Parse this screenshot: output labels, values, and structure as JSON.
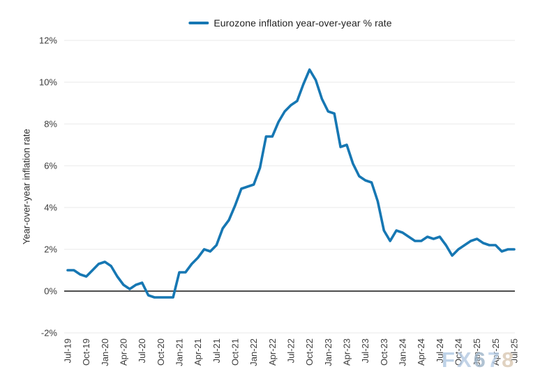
{
  "legend": {
    "label": "Eurozone inflation year-over-year % rate"
  },
  "colors": {
    "line": "#1677b3",
    "grid": "#e8e8e8",
    "zero_axis": "#4d4d4d",
    "tick_text": "#3c3c3c"
  },
  "watermark": {
    "text": "FX678",
    "char_colors": [
      "#aec8e2",
      "#b4c9e2",
      "#9db3c8",
      "#b8cfe8",
      "#d9c8b2"
    ]
  },
  "chart_data": {
    "type": "line",
    "title": "",
    "ylabel": "Year-over-year inflation rate",
    "xlabel": "",
    "legend_entries": [
      "Eurozone inflation year-over-year % rate"
    ],
    "legend_position": "top-center",
    "grid": "horizontal",
    "ylim": [
      -2,
      12
    ],
    "y_ticks": [
      12,
      10,
      8,
      6,
      4,
      2,
      0,
      -2
    ],
    "y_tick_labels": [
      "12%",
      "10%",
      "8%",
      "6%",
      "4%",
      "2%",
      "0%",
      "-2%"
    ],
    "x_tick_every": 3,
    "x_tick_labels": [
      "Jul-19",
      "Oct-19",
      "Jan-20",
      "Apr-20",
      "Jul-20",
      "Oct-20",
      "Jan-21",
      "Apr-21",
      "Jul-21",
      "Oct-21",
      "Jan-22",
      "Apr-22",
      "Jul-22",
      "Oct-22",
      "Jan-23",
      "Apr-23",
      "Jul-23",
      "Oct-23",
      "Jan-24",
      "Apr-24",
      "Jul-24",
      "Oct-24",
      "Jan-25",
      "Apr-25",
      "Jul-25"
    ],
    "x": [
      "Jul-19",
      "Aug-19",
      "Sep-19",
      "Oct-19",
      "Nov-19",
      "Dec-19",
      "Jan-20",
      "Feb-20",
      "Mar-20",
      "Apr-20",
      "May-20",
      "Jun-20",
      "Jul-20",
      "Aug-20",
      "Sep-20",
      "Oct-20",
      "Nov-20",
      "Dec-20",
      "Jan-21",
      "Feb-21",
      "Mar-21",
      "Apr-21",
      "May-21",
      "Jun-21",
      "Jul-21",
      "Aug-21",
      "Sep-21",
      "Oct-21",
      "Nov-21",
      "Dec-21",
      "Jan-22",
      "Feb-22",
      "Mar-22",
      "Apr-22",
      "May-22",
      "Jun-22",
      "Jul-22",
      "Aug-22",
      "Sep-22",
      "Oct-22",
      "Nov-22",
      "Dec-22",
      "Jan-23",
      "Feb-23",
      "Mar-23",
      "Apr-23",
      "May-23",
      "Jun-23",
      "Jul-23",
      "Aug-23",
      "Sep-23",
      "Oct-23",
      "Nov-23",
      "Dec-23",
      "Jan-24",
      "Feb-24",
      "Mar-24",
      "Apr-24",
      "May-24",
      "Jun-24",
      "Jul-24",
      "Aug-24",
      "Sep-24",
      "Oct-24",
      "Nov-24",
      "Dec-24",
      "Jan-25",
      "Feb-25",
      "Mar-25",
      "Apr-25",
      "May-25",
      "Jun-25",
      "Jul-25"
    ],
    "values": [
      1.0,
      1.0,
      0.8,
      0.7,
      1.0,
      1.3,
      1.4,
      1.2,
      0.7,
      0.3,
      0.1,
      0.3,
      0.4,
      -0.2,
      -0.3,
      -0.3,
      -0.3,
      -0.3,
      0.9,
      0.9,
      1.3,
      1.6,
      2.0,
      1.9,
      2.2,
      3.0,
      3.4,
      4.1,
      4.9,
      5.0,
      5.1,
      5.9,
      7.4,
      7.4,
      8.1,
      8.6,
      8.9,
      9.1,
      9.9,
      10.6,
      10.1,
      9.2,
      8.6,
      8.5,
      6.9,
      7.0,
      6.1,
      5.5,
      5.3,
      5.2,
      4.3,
      2.9,
      2.4,
      2.9,
      2.8,
      2.6,
      2.4,
      2.4,
      2.6,
      2.5,
      2.6,
      2.2,
      1.7,
      2.0,
      2.2,
      2.4,
      2.5,
      2.3,
      2.2,
      2.2,
      1.9,
      2.0,
      2.0
    ]
  }
}
